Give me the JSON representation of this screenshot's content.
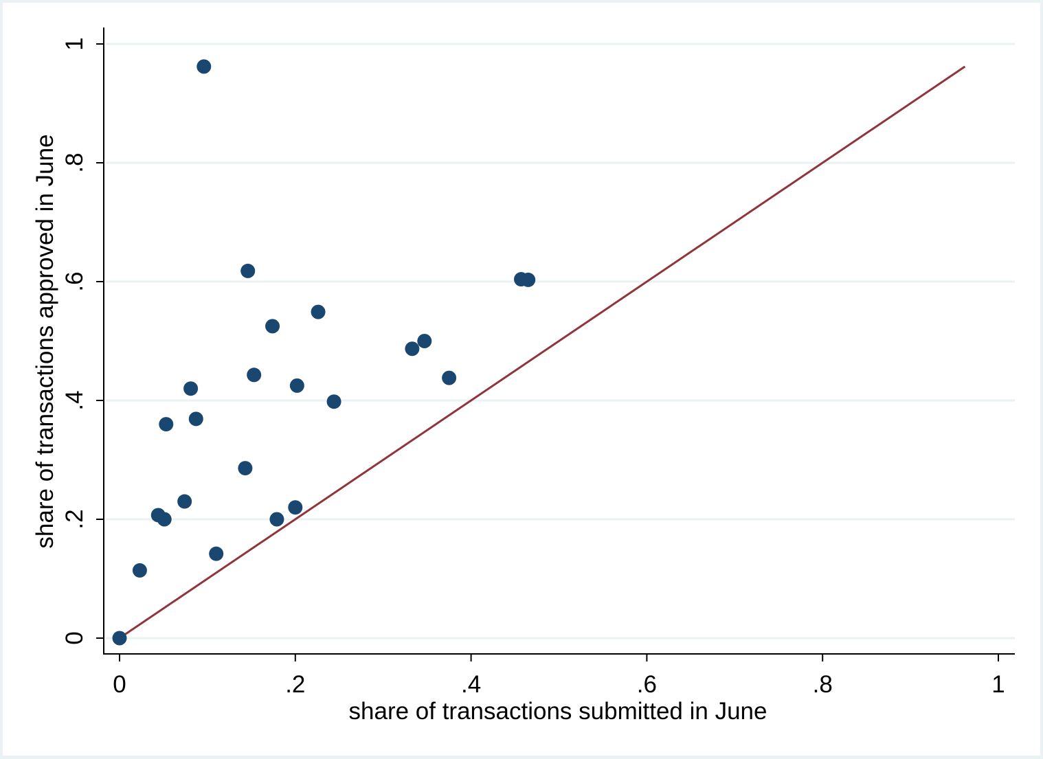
{
  "chart_data": {
    "type": "scatter",
    "title": "",
    "xlabel": "share of transactions submitted in June",
    "ylabel": "share of transactions approved in June",
    "xlim": [
      0,
      1
    ],
    "ylim": [
      0,
      1
    ],
    "x_ticks": [
      {
        "value": 0,
        "label": "0"
      },
      {
        "value": 0.2,
        "label": ".2"
      },
      {
        "value": 0.4,
        "label": ".4"
      },
      {
        "value": 0.6,
        "label": ".6"
      },
      {
        "value": 0.8,
        "label": ".8"
      },
      {
        "value": 1,
        "label": "1"
      }
    ],
    "y_ticks": [
      {
        "value": 0,
        "label": "0"
      },
      {
        "value": 0.2,
        "label": ".2"
      },
      {
        "value": 0.4,
        "label": ".4"
      },
      {
        "value": 0.6,
        "label": ".6"
      },
      {
        "value": 0.8,
        "label": ".8"
      },
      {
        "value": 1,
        "label": "1"
      }
    ],
    "grid": "horizontal",
    "legend": "none",
    "marker_color": "#1a476f",
    "line_color": "#90353b",
    "gridline_color": "#eaf2f3",
    "series": [
      {
        "type": "scatter",
        "points": [
          {
            "x": 0.0,
            "y": 0.0
          },
          {
            "x": 0.023,
            "y": 0.114
          },
          {
            "x": 0.044,
            "y": 0.207
          },
          {
            "x": 0.051,
            "y": 0.2
          },
          {
            "x": 0.053,
            "y": 0.36
          },
          {
            "x": 0.074,
            "y": 0.23
          },
          {
            "x": 0.081,
            "y": 0.42
          },
          {
            "x": 0.087,
            "y": 0.369
          },
          {
            "x": 0.096,
            "y": 0.962
          },
          {
            "x": 0.11,
            "y": 0.142
          },
          {
            "x": 0.143,
            "y": 0.286
          },
          {
            "x": 0.146,
            "y": 0.618
          },
          {
            "x": 0.153,
            "y": 0.443
          },
          {
            "x": 0.174,
            "y": 0.525
          },
          {
            "x": 0.179,
            "y": 0.2
          },
          {
            "x": 0.2,
            "y": 0.22
          },
          {
            "x": 0.202,
            "y": 0.425
          },
          {
            "x": 0.226,
            "y": 0.549
          },
          {
            "x": 0.244,
            "y": 0.398
          },
          {
            "x": 0.333,
            "y": 0.487
          },
          {
            "x": 0.347,
            "y": 0.5
          },
          {
            "x": 0.375,
            "y": 0.438
          },
          {
            "x": 0.457,
            "y": 0.604
          },
          {
            "x": 0.465,
            "y": 0.603
          }
        ]
      },
      {
        "type": "line",
        "points": [
          {
            "x": 0.0,
            "y": 0.0
          },
          {
            "x": 0.962,
            "y": 0.962
          }
        ]
      }
    ]
  }
}
